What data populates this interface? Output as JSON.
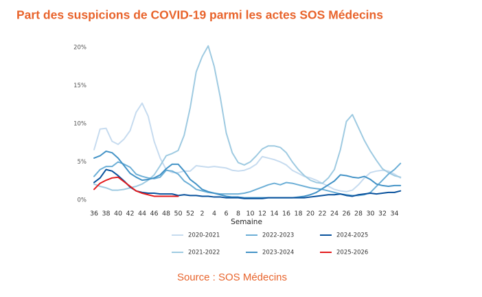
{
  "chart_data": {
    "type": "line",
    "title": "Part des suspicions de COVID-19 parmi les actes SOS Médecins",
    "x_label": "Semaine",
    "source": "Source : SOS Médecins",
    "categories": [
      36,
      null,
      38,
      null,
      40,
      null,
      42,
      null,
      44,
      null,
      46,
      null,
      48,
      null,
      50,
      null,
      52,
      null,
      2,
      null,
      4,
      null,
      6,
      null,
      8,
      null,
      10,
      null,
      12,
      null,
      14,
      null,
      16,
      null,
      18,
      null,
      20,
      null,
      22,
      null,
      24,
      null,
      26,
      null,
      28,
      null,
      30,
      null,
      32,
      null,
      34,
      null
    ],
    "ylim": [
      0,
      20
    ],
    "yticks": [
      {
        "value": 0,
        "label": "0%"
      },
      {
        "value": 5,
        "label": "5%"
      },
      {
        "value": 10,
        "label": "10%"
      },
      {
        "value": 15,
        "label": "15%"
      },
      {
        "value": 20,
        "label": "20%"
      }
    ],
    "grid": false,
    "legend": "bottom",
    "series": [
      {
        "name": "2020-2021",
        "color": "#c6dbef",
        "values": [
          6.6,
          9.3,
          9.4,
          7.7,
          7.3,
          8,
          9.1,
          11.5,
          12.7,
          11,
          7.7,
          5.5,
          4,
          3.6,
          3.6,
          3.8,
          3.8,
          4.5,
          4.4,
          4.3,
          4.4,
          4.3,
          4.2,
          3.9,
          3.8,
          3.9,
          4.2,
          4.7,
          5.7,
          5.5,
          5.3,
          5,
          4.6,
          3.9,
          3.5,
          3.1,
          2.9,
          2.6,
          2.2,
          1.8,
          1.4,
          1.2,
          1.1,
          1.3,
          2,
          2.9,
          3.6,
          3.8,
          3.9,
          3.8,
          3.4,
          2.9
        ]
      },
      {
        "name": "2021-2022",
        "color": "#9ecae1",
        "values": [
          2.1,
          1.8,
          1.6,
          1.3,
          1.3,
          1.4,
          1.6,
          1.8,
          2.1,
          2.6,
          3.3,
          4.5,
          5.8,
          6.1,
          6.5,
          8.5,
          12.1,
          16.8,
          18.8,
          20.2,
          17.5,
          13.5,
          8.8,
          6.2,
          4.9,
          4.6,
          5,
          5.8,
          6.7,
          7.1,
          7.1,
          6.9,
          6.2,
          5,
          4,
          3.2,
          2.6,
          2.3,
          2.2,
          2.9,
          4,
          6.6,
          10.3,
          11.2,
          9.5,
          7.8,
          6.4,
          5.2,
          4.1,
          3.6,
          3.2,
          3.0
        ]
      },
      {
        "name": "2022-2023",
        "color": "#6baed6",
        "values": [
          3.1,
          4,
          4.4,
          4.4,
          5,
          4.7,
          4.3,
          3.4,
          3.1,
          2.9,
          2.8,
          3,
          3.9,
          3.8,
          3.4,
          2.5,
          2,
          1.4,
          1.2,
          1,
          0.9,
          0.8,
          0.8,
          0.8,
          0.8,
          0.9,
          1.1,
          1.4,
          1.7,
          2,
          2.2,
          2,
          2.3,
          2.2,
          2,
          1.8,
          1.6,
          1.5,
          1.4,
          1.2,
          1,
          0.8,
          0.7,
          0.6,
          0.6,
          0.7,
          1,
          1.8,
          2.6,
          3.4,
          4,
          4.8
        ]
      },
      {
        "name": "2023-2024",
        "color": "#4292c6",
        "values": [
          5.5,
          5.8,
          6.4,
          6.2,
          5.5,
          4.5,
          3.5,
          3,
          2.6,
          2.7,
          2.9,
          3.3,
          4.1,
          4.7,
          4.7,
          3.8,
          2.7,
          2.1,
          1.4,
          1.1,
          0.9,
          0.7,
          0.5,
          0.4,
          0.4,
          0.3,
          0.3,
          0.3,
          0.3,
          0.3,
          0.3,
          0.3,
          0.3,
          0.3,
          0.4,
          0.5,
          0.7,
          1,
          1.5,
          2,
          2.5,
          3.3,
          3.2,
          3,
          2.9,
          3.1,
          2.7,
          2.1,
          1.9,
          1.8,
          1.9,
          1.9
        ]
      },
      {
        "name": "2024-2025",
        "color": "#08519c",
        "values": [
          2.3,
          2.9,
          4,
          3.8,
          3.2,
          2.5,
          1.7,
          1.2,
          1,
          0.9,
          0.9,
          0.8,
          0.8,
          0.8,
          0.6,
          0.7,
          0.6,
          0.6,
          0.5,
          0.5,
          0.4,
          0.4,
          0.3,
          0.3,
          0.3,
          0.2,
          0.2,
          0.2,
          0.2,
          0.3,
          0.3,
          0.3,
          0.3,
          0.3,
          0.3,
          0.3,
          0.4,
          0.5,
          0.6,
          0.7,
          0.7,
          0.8,
          0.6,
          0.5,
          0.7,
          0.8,
          0.9,
          0.8,
          0.9,
          1,
          1,
          1.2
        ]
      },
      {
        "name": "2025-2026",
        "color": "#e31a1c",
        "values": [
          1.4,
          2.2,
          2.6,
          2.9,
          3,
          2.4,
          1.8,
          1.2,
          0.9,
          0.7,
          0.5,
          0.5,
          0.5,
          0.5,
          0.5,
          null,
          null,
          null,
          null,
          null,
          null,
          null,
          null,
          null,
          null,
          null,
          null,
          null,
          null,
          null,
          null,
          null,
          null,
          null,
          null,
          null,
          null,
          null,
          null,
          null,
          null,
          null,
          null,
          null,
          null,
          null,
          null,
          null,
          null,
          null,
          null,
          null
        ]
      }
    ]
  }
}
